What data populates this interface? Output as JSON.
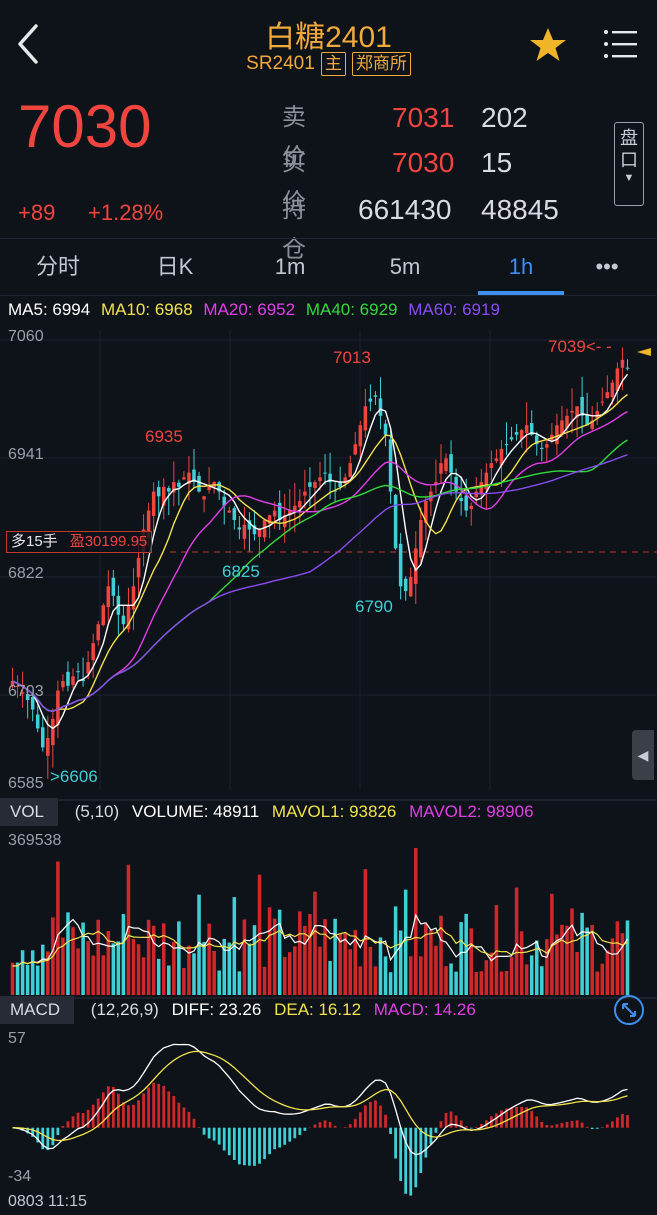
{
  "header": {
    "title": "白糖2401",
    "code": "SR2401",
    "tag_main": "主",
    "tag_exchange": "郑商所"
  },
  "quote": {
    "last_price": "7030",
    "change": "+89",
    "change_pct": "+1.28%",
    "ask_label": "卖价",
    "ask_price": "7031",
    "ask_volume": "202",
    "bid_label": "买价",
    "bid_price": "7030",
    "bid_volume": "15",
    "oi_label": "持仓",
    "open_interest": "661430",
    "oi_change": "48845",
    "pankou_label": "盘口"
  },
  "tabs": [
    {
      "label": "分时"
    },
    {
      "label": "日K"
    },
    {
      "label": "1m"
    },
    {
      "label": "5m"
    },
    {
      "label": "1h"
    },
    {
      "label": "•••"
    }
  ],
  "active_tab": "1h",
  "ma_legend": {
    "ma5": "MA5: 6994",
    "ma10": "MA10: 6968",
    "ma20": "MA20: 6952",
    "ma40": "MA40: 6929",
    "ma60": "MA60: 6919"
  },
  "colors": {
    "up": "#f0443f",
    "down": "#3fd0d6",
    "ma5": "#ffffff",
    "ma10": "#f2e24b",
    "ma20": "#e23ee8",
    "ma40": "#33d93a",
    "ma60": "#8a4cf0",
    "accent": "#3d8ff0",
    "gold": "#f0a93b"
  },
  "main_chart": {
    "y_ticks": [
      "7060",
      "6941",
      "6822",
      "6703",
      "6585"
    ],
    "annotations": {
      "high_6935": "6935",
      "high_7013": "7013",
      "low_6825": "6825",
      "low_6790": "6790",
      "low_6606": ">6606",
      "last_7039": "7039<- -"
    },
    "position_badge": {
      "side": "多15手",
      "profit": "盈30199.95"
    }
  },
  "volume_panel": {
    "name": "VOL",
    "params": "(5,10)",
    "volume": "VOLUME: 48911",
    "mavol1": "MAVOL1: 93826",
    "mavol2": "MAVOL2: 98906",
    "y_max": "369538"
  },
  "macd_panel": {
    "name": "MACD",
    "params": "(12,26,9)",
    "diff": "DIFF: 23.26",
    "dea": "DEA: 16.12",
    "macd": "MACD: 14.26",
    "y_max": "57",
    "y_min": "-34"
  },
  "footer": {
    "start_time": "0803 11:15"
  },
  "chart_data": {
    "type": "candlestick",
    "interval": "1h",
    "ylim": [
      6585,
      7060
    ],
    "close_series_approx": [
      6700,
      6695,
      6688,
      6680,
      6670,
      6650,
      6630,
      6640,
      6660,
      6690,
      6700,
      6695,
      6705,
      6710,
      6700,
      6720,
      6740,
      6760,
      6780,
      6800,
      6790,
      6770,
      6760,
      6780,
      6800,
      6830,
      6860,
      6880,
      6900,
      6895,
      6905,
      6900,
      6910,
      6905,
      6915,
      6920,
      6910,
      6900,
      6895,
      6905,
      6910,
      6900,
      6885,
      6880,
      6870,
      6860,
      6865,
      6860,
      6855,
      6860,
      6870,
      6875,
      6880,
      6870,
      6875,
      6880,
      6885,
      6890,
      6900,
      6905,
      6910,
      6915,
      6920,
      6910,
      6900,
      6905,
      6915,
      6930,
      6950,
      6970,
      6990,
      6995,
      7000,
      6980,
      6960,
      6900,
      6840,
      6800,
      6795,
      6810,
      6840,
      6870,
      6890,
      6900,
      6910,
      6930,
      6935,
      6920,
      6900,
      6890,
      6880,
      6885,
      6900,
      6910,
      6920,
      6930,
      6935,
      6945,
      6950,
      6955,
      6960,
      6965,
      6970,
      6960,
      6950,
      6945,
      6950,
      6960,
      6970,
      6975,
      6980,
      6985,
      6990,
      6980,
      6970,
      6975,
      6985,
      6995,
      7005,
      7015,
      7030,
      7039,
      7030
    ]
  }
}
